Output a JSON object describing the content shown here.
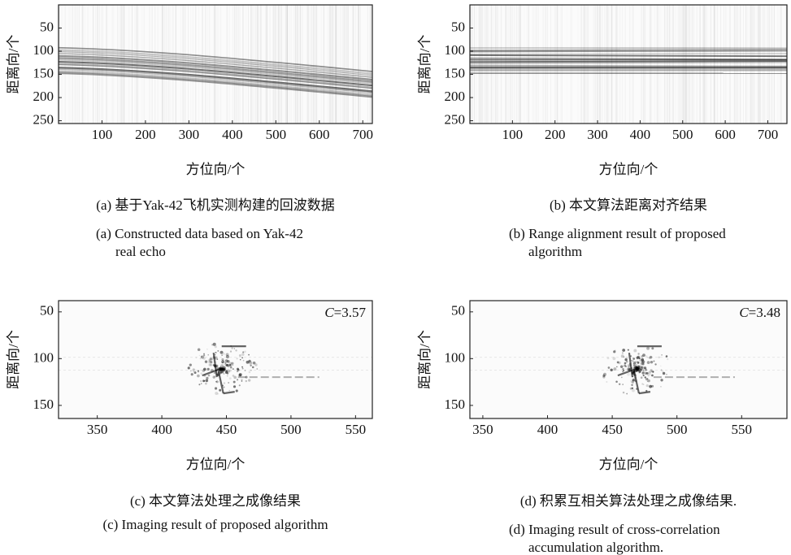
{
  "chart_data": [
    {
      "type": "image",
      "xlabel": "方位向/个",
      "ylabel": "距离向/个",
      "caption_cn": "(a) 基于Yak-42飞机实测构建的回波数据",
      "caption_en": [
        "(a) Constructed data based on Yak-42",
        "real echo"
      ],
      "xlim": [
        0,
        722
      ],
      "xticks": [
        100,
        200,
        300,
        400,
        500,
        600,
        700
      ],
      "ylim": [
        0,
        256
      ],
      "yticks": [
        50,
        100,
        150,
        200,
        250
      ],
      "y_inverted": true
    },
    {
      "type": "image",
      "xlabel": "方位向/个",
      "ylabel": "距离向/个",
      "caption_cn": "(b) 本文算法距离对齐结果",
      "caption_en": [
        "(b) Range alignment result of proposed",
        "algorithm"
      ],
      "xlim": [
        0,
        745
      ],
      "xticks": [
        100,
        200,
        300,
        400,
        500,
        600,
        700
      ],
      "ylim": [
        0,
        256
      ],
      "yticks": [
        50,
        100,
        150,
        200,
        250
      ],
      "y_inverted": true
    },
    {
      "type": "image",
      "xlabel": "方位向/个",
      "ylabel": "距离向/个",
      "caption_cn": "(c) 本文算法处理之成像结果",
      "caption_en": [
        "(c) Imaging result of proposed algorithm"
      ],
      "annotation_symbol": "C",
      "annotation_value": "=3.57",
      "xlim": [
        320,
        563
      ],
      "xticks": [
        350,
        400,
        450,
        500,
        550
      ],
      "ylim": [
        38,
        164
      ],
      "yticks": [
        50,
        100,
        150
      ],
      "y_inverted": true
    },
    {
      "type": "image",
      "xlabel": "方位向/个",
      "ylabel": "距离向/个",
      "caption_cn": "(d) 积累互相关算法处理之成像结果.",
      "caption_en": [
        "(d) Imaging result of cross-correlation",
        "accumulation algorithm."
      ],
      "annotation_symbol": "C",
      "annotation_value": "=3.48",
      "xlim": [
        340,
        585
      ],
      "xticks": [
        350,
        400,
        450,
        500,
        550
      ],
      "ylim": [
        38,
        164
      ],
      "yticks": [
        50,
        100,
        150
      ],
      "y_inverted": true
    }
  ]
}
